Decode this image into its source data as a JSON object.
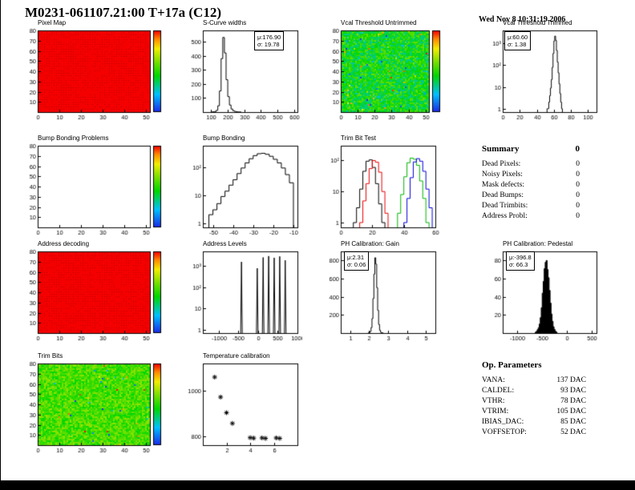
{
  "header": {
    "title": "M0231-061107.21:00 T+17a (C12)",
    "datetime": "Wed Nov  8 10:31:19 2006"
  },
  "palette": [
    [
      0,
      "#1c24e8"
    ],
    [
      0.22,
      "#00c0ff"
    ],
    [
      0.45,
      "#00d800"
    ],
    [
      0.62,
      "#7ae000"
    ],
    [
      0.78,
      "#f2ee00"
    ],
    [
      0.9,
      "#ff8800"
    ],
    [
      1,
      "#f40000"
    ]
  ],
  "chart_data": [
    {
      "title": "Pixel Map",
      "type": "heatmap",
      "map": "red",
      "base": "#f40000",
      "colorbar": true,
      "frame": {
        "xmin": 0,
        "xmax": 52,
        "ymin": 0,
        "ymax": 80
      },
      "xticks": [
        [
          0,
          "0"
        ],
        [
          10,
          "10"
        ],
        [
          20,
          "20"
        ],
        [
          30,
          "30"
        ],
        [
          40,
          "40"
        ],
        [
          50,
          "50"
        ]
      ],
      "yticks": [
        [
          10,
          "10"
        ],
        [
          20,
          "20"
        ],
        [
          30,
          "30"
        ],
        [
          40,
          "40"
        ],
        [
          50,
          "50"
        ],
        [
          60,
          "60"
        ],
        [
          70,
          "70"
        ],
        [
          80,
          "80"
        ]
      ]
    },
    {
      "title": "S-Curve widths",
      "type": "hist",
      "color": "#000000",
      "frame": {
        "xmin": 50,
        "xmax": 620,
        "ymin": 0,
        "ymax": 580
      },
      "xticks": [
        [
          100,
          "100"
        ],
        [
          200,
          "200"
        ],
        [
          300,
          "300"
        ],
        [
          400,
          "400"
        ],
        [
          500,
          "500"
        ],
        [
          600,
          "600"
        ]
      ],
      "yticks": [
        [
          100,
          "100"
        ],
        [
          200,
          "200"
        ],
        [
          300,
          "300"
        ],
        [
          400,
          "400"
        ],
        [
          500,
          "500"
        ]
      ],
      "bins": {
        "x0": 100,
        "dx": 10,
        "values": [
          1,
          2,
          4,
          12,
          45,
          150,
          380,
          530,
          420,
          230,
          110,
          50,
          22,
          10,
          5,
          2,
          1,
          1
        ]
      },
      "stats": {
        "mu": "μ:176.90",
        "sigma": "σ: 19.78"
      }
    },
    {
      "title": "Vcal Threshold Untrimmed",
      "type": "heatmap",
      "map": "noise",
      "mean": 0.45,
      "amp": 0.3,
      "outlier": 0.03,
      "colorbar": true,
      "frame": {
        "xmin": 0,
        "xmax": 52,
        "ymin": 0,
        "ymax": 80
      },
      "xticks": [
        [
          0,
          "0"
        ],
        [
          10,
          "10"
        ],
        [
          20,
          "20"
        ],
        [
          30,
          "30"
        ],
        [
          40,
          "40"
        ],
        [
          50,
          "50"
        ]
      ],
      "yticks": [
        [
          10,
          "10"
        ],
        [
          20,
          "20"
        ],
        [
          30,
          "30"
        ],
        [
          40,
          "40"
        ],
        [
          50,
          "50"
        ],
        [
          60,
          "60"
        ],
        [
          70,
          "70"
        ],
        [
          80,
          "80"
        ]
      ]
    },
    {
      "title": "Vcal Threshold Trimmed",
      "type": "hist",
      "color": "#000000",
      "frame": {
        "xmin": 0,
        "xmax": 110,
        "ymin": 0.7,
        "ymax": 4000,
        "ylog": true
      },
      "xticks": [
        [
          0,
          "0"
        ],
        [
          20,
          "20"
        ],
        [
          40,
          "40"
        ],
        [
          60,
          "60"
        ],
        [
          80,
          "80"
        ],
        [
          100,
          "100"
        ]
      ],
      "yticks": [
        [
          1,
          "1"
        ],
        [
          10,
          "10"
        ],
        [
          100,
          "10²"
        ],
        [
          1000,
          "10³"
        ]
      ],
      "bins": {
        "x0": 52,
        "dx": 1,
        "values": [
          1,
          1,
          2,
          4,
          9,
          22,
          80,
          350,
          1300,
          2200,
          1400,
          480,
          140,
          45,
          14,
          5,
          2,
          1
        ]
      },
      "stats": {
        "mu": "μ:60.60",
        "sigma": "σ: 1.38"
      }
    },
    {
      "title": "Bump Bonding Problems",
      "type": "heatmap",
      "map": "empty",
      "colorbar": true,
      "frame": {
        "xmin": 0,
        "xmax": 52,
        "ymin": 0,
        "ymax": 80
      },
      "xticks": [
        [
          0,
          "0"
        ],
        [
          10,
          "10"
        ],
        [
          20,
          "20"
        ],
        [
          30,
          "30"
        ],
        [
          40,
          "40"
        ],
        [
          50,
          "50"
        ]
      ],
      "yticks": [
        [
          10,
          "10"
        ],
        [
          20,
          "20"
        ],
        [
          30,
          "30"
        ],
        [
          40,
          "40"
        ],
        [
          50,
          "50"
        ],
        [
          60,
          "60"
        ],
        [
          70,
          "70"
        ],
        [
          80,
          "80"
        ]
      ]
    },
    {
      "title": "Bump Bonding",
      "type": "hist",
      "color": "#000000",
      "frame": {
        "xmin": -55,
        "xmax": -8,
        "ymin": 0.7,
        "ymax": 600,
        "ylog": true
      },
      "xticks": [
        [
          -50,
          "-50"
        ],
        [
          -40,
          "-40"
        ],
        [
          -30,
          "-30"
        ],
        [
          -20,
          "-20"
        ],
        [
          -10,
          "-10"
        ]
      ],
      "yticks": [
        [
          1,
          "1"
        ],
        [
          10,
          "10"
        ],
        [
          100,
          "10²"
        ]
      ],
      "bins": {
        "x0": -52,
        "dx": 2,
        "values": [
          2,
          3,
          5,
          9,
          14,
          23,
          36,
          60,
          95,
          145,
          205,
          265,
          310,
          320,
          295,
          250,
          195,
          145,
          95,
          55,
          28
        ]
      }
    },
    {
      "title": "Trim Bit Test",
      "type": "multihist",
      "frame": {
        "xmin": 0,
        "xmax": 60,
        "ymin": 0.7,
        "ymax": 300,
        "ylog": true
      },
      "xticks": [
        [
          0,
          "0"
        ],
        [
          20,
          "20"
        ],
        [
          40,
          "40"
        ],
        [
          60,
          "60"
        ]
      ],
      "yticks": [
        [
          1,
          "1"
        ],
        [
          10,
          "10"
        ],
        [
          100,
          "10²"
        ]
      ],
      "series": [
        {
          "color": "#000000",
          "bins": {
            "x0": 8,
            "dx": 2,
            "values": [
              1,
              3,
              12,
              45,
              95,
              105,
              60,
              18,
              4,
              1
            ]
          }
        },
        {
          "color": "#e80000",
          "bins": {
            "x0": 12,
            "dx": 2,
            "values": [
              1,
              5,
              18,
              55,
              100,
              88,
              42,
              10,
              2
            ]
          }
        },
        {
          "color": "#00b400",
          "bins": {
            "x0": 36,
            "dx": 2,
            "values": [
              2,
              8,
              30,
              85,
              120,
              110,
              70,
              22,
              6,
              1
            ]
          }
        },
        {
          "color": "#0000d8",
          "bins": {
            "x0": 40,
            "dx": 2,
            "values": [
              1,
              6,
              28,
              90,
              115,
              95,
              45,
              12,
              3
            ]
          }
        }
      ]
    },
    {
      "title": "Address decoding",
      "type": "heatmap",
      "map": "red",
      "base": "#f40000",
      "colorbar": true,
      "frame": {
        "xmin": 0,
        "xmax": 52,
        "ymin": 0,
        "ymax": 80
      },
      "xticks": [
        [
          0,
          "0"
        ],
        [
          10,
          "10"
        ],
        [
          20,
          "20"
        ],
        [
          30,
          "30"
        ],
        [
          40,
          "40"
        ],
        [
          50,
          "50"
        ]
      ],
      "yticks": [
        [
          10,
          "10"
        ],
        [
          20,
          "20"
        ],
        [
          30,
          "30"
        ],
        [
          40,
          "40"
        ],
        [
          50,
          "50"
        ],
        [
          60,
          "60"
        ],
        [
          70,
          "70"
        ],
        [
          80,
          "80"
        ]
      ]
    },
    {
      "title": "Address Levels",
      "type": "spikes",
      "frame": {
        "xmin": -1400,
        "xmax": 1000,
        "ymin": 0.7,
        "ymax": 5000,
        "ylog": true
      },
      "xticks": [
        [
          -1000,
          "-1000"
        ],
        [
          -500,
          "-500"
        ],
        [
          0,
          "0"
        ],
        [
          500,
          "500"
        ],
        [
          1000,
          "1000"
        ]
      ],
      "yticks": [
        [
          1,
          "1"
        ],
        [
          10,
          "10"
        ],
        [
          100,
          "10²"
        ],
        [
          1000,
          "10³"
        ]
      ],
      "spikes": [
        [
          -420,
          1600
        ],
        [
          -20,
          800
        ],
        [
          130,
          2600
        ],
        [
          270,
          3000
        ],
        [
          410,
          2500
        ],
        [
          550,
          2900
        ],
        [
          690,
          1900
        ]
      ]
    },
    {
      "title": "PH Calibration: Gain",
      "type": "hist",
      "color": "#000000",
      "frame": {
        "xmin": 0.5,
        "xmax": 5.5,
        "ymin": 0,
        "ymax": 900
      },
      "xticks": [
        [
          1,
          "1"
        ],
        [
          2,
          "2"
        ],
        [
          3,
          "3"
        ],
        [
          4,
          "4"
        ],
        [
          5,
          "5"
        ]
      ],
      "yticks": [
        [
          200,
          "200"
        ],
        [
          400,
          "400"
        ],
        [
          600,
          "600"
        ],
        [
          800,
          "800"
        ]
      ],
      "bins": {
        "x0": 1.95,
        "dx": 0.05,
        "values": [
          2,
          6,
          18,
          60,
          160,
          380,
          650,
          830,
          760,
          500,
          250,
          95,
          32,
          10,
          3,
          1
        ]
      },
      "stats": {
        "mu": "μ:2.31",
        "sigma": "σ: 0.06"
      }
    },
    {
      "title": "PH Calibration: Pedestal",
      "type": "hist",
      "color": "#000000",
      "fill": "#000000",
      "frame": {
        "xmin": -1300,
        "xmax": 600,
        "ymin": 0,
        "ymax": 90
      },
      "xticks": [
        [
          -1000,
          "-1000"
        ],
        [
          -500,
          "-500"
        ],
        [
          0,
          "0"
        ],
        [
          500,
          "500"
        ]
      ],
      "yticks": [
        [
          20,
          "20"
        ],
        [
          40,
          "40"
        ],
        [
          60,
          "60"
        ],
        [
          80,
          "80"
        ]
      ],
      "bins": {
        "x0": -640,
        "dx": 20,
        "values": [
          1,
          2,
          4,
          6,
          10,
          17,
          28,
          44,
          57,
          71,
          78,
          80,
          70,
          61,
          47,
          33,
          21,
          13,
          7,
          4,
          2,
          1
        ]
      },
      "stats": {
        "mu": "μ:-396.8",
        "sigma": "σ: 66.3"
      }
    },
    {
      "title": "Trim Bits",
      "type": "heatmap",
      "map": "noise",
      "mean": 0.55,
      "amp": 0.22,
      "outlier": 0.015,
      "colorbar": true,
      "frame": {
        "xmin": 0,
        "xmax": 52,
        "ymin": 0,
        "ymax": 80
      },
      "xticks": [
        [
          0,
          "0"
        ],
        [
          10,
          "10"
        ],
        [
          20,
          "20"
        ],
        [
          30,
          "30"
        ],
        [
          40,
          "40"
        ],
        [
          50,
          "50"
        ]
      ],
      "yticks": [
        [
          10,
          "10"
        ],
        [
          20,
          "20"
        ],
        [
          30,
          "30"
        ],
        [
          40,
          "40"
        ],
        [
          50,
          "50"
        ],
        [
          60,
          "60"
        ],
        [
          70,
          "70"
        ],
        [
          80,
          "80"
        ]
      ]
    },
    {
      "title": "Temperature calibration",
      "type": "scatter",
      "frame": {
        "xmin": 0,
        "xmax": 8,
        "ymin": 760,
        "ymax": 1120
      },
      "xticks": [
        [
          2,
          "2"
        ],
        [
          4,
          "4"
        ],
        [
          6,
          "6"
        ]
      ],
      "yticks": [
        [
          800,
          "800"
        ],
        [
          1000,
          "1000"
        ]
      ],
      "points": [
        [
          1,
          1060
        ],
        [
          1.5,
          972
        ],
        [
          2,
          903
        ],
        [
          2.5,
          856
        ],
        [
          4,
          793
        ],
        [
          4.3,
          791
        ],
        [
          5,
          792
        ],
        [
          5.3,
          790
        ],
        [
          6.2,
          792
        ],
        [
          6.5,
          790
        ]
      ]
    }
  ],
  "summary": {
    "heading": "Summary",
    "total": "0",
    "rows": [
      {
        "label": "Dead Pixels:",
        "value": "0"
      },
      {
        "label": "Noisy Pixels:",
        "value": "0"
      },
      {
        "label": "Mask defects:",
        "value": "0"
      },
      {
        "label": "Dead Bumps:",
        "value": "0"
      },
      {
        "label": "Dead Trimbits:",
        "value": "0"
      },
      {
        "label": "Address Probl:",
        "value": "0"
      }
    ]
  },
  "op_parameters": {
    "heading": "Op. Parameters",
    "rows": [
      {
        "label": "VANA:",
        "value": "137 DAC"
      },
      {
        "label": "CALDEL:",
        "value": "93 DAC"
      },
      {
        "label": "VTHR:",
        "value": "78 DAC"
      },
      {
        "label": "VTRIM:",
        "value": "105 DAC"
      },
      {
        "label": "IBIAS_DAC:",
        "value": "85 DAC"
      },
      {
        "label": "VOFFSETOP:",
        "value": "52 DAC"
      }
    ]
  }
}
